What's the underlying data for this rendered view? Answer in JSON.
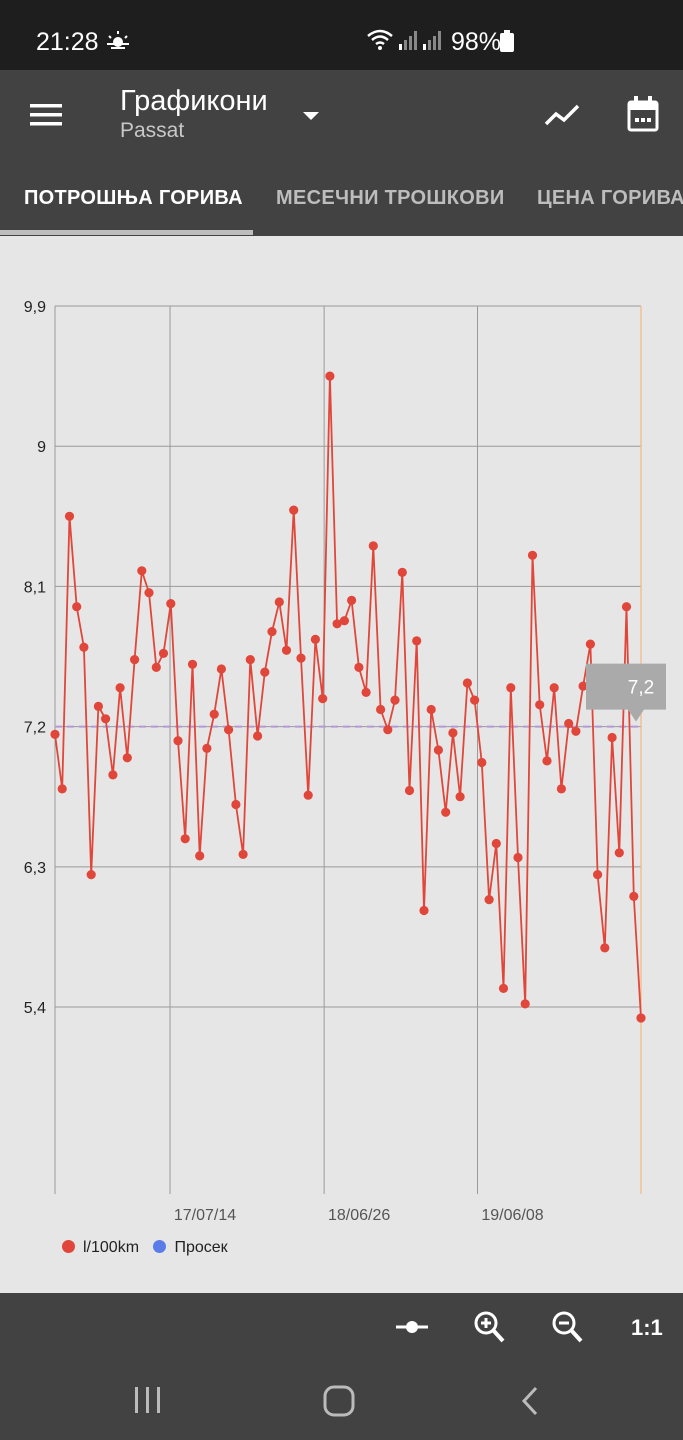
{
  "status": {
    "time": "21:28",
    "battery": "98%"
  },
  "app": {
    "title": "Графикони",
    "subtitle": "Passat"
  },
  "tabs": [
    "ПОТРОШЊА ГОРИВА",
    "МЕСЕЧНИ ТРОШКОВИ",
    "ЦЕНА ГОРИВА"
  ],
  "toolbar": {
    "ratio_label": "1:1"
  },
  "chart_data": {
    "type": "line",
    "ylim": [
      4.2,
      9.9
    ],
    "yticks": [
      "9,9",
      "9",
      "8,1",
      "7,2",
      "6,3",
      "5,4"
    ],
    "ytick_values": [
      9.9,
      9.0,
      8.1,
      7.2,
      6.3,
      5.4
    ],
    "xticks": [
      "17/07/14",
      "18/06/26",
      "19/06/08"
    ],
    "xtick_index": [
      15.9,
      37.2,
      58.4
    ],
    "grid": true,
    "legend_position": "bottom-left",
    "average": 7.2,
    "tooltip": "7,2",
    "colors": {
      "series": "#e0473a",
      "average": "#5b7be8"
    },
    "series": [
      {
        "name": "l/100km",
        "values": [
          7.15,
          6.8,
          8.55,
          7.97,
          7.71,
          6.25,
          7.33,
          7.25,
          6.89,
          7.45,
          7.0,
          7.63,
          8.2,
          8.06,
          7.58,
          7.67,
          7.99,
          7.11,
          6.48,
          7.6,
          6.37,
          7.06,
          7.28,
          7.57,
          7.18,
          6.7,
          6.38,
          7.63,
          7.14,
          7.55,
          7.81,
          8.0,
          7.69,
          8.59,
          7.64,
          6.76,
          7.76,
          7.38,
          9.45,
          7.86,
          7.88,
          8.01,
          7.58,
          7.42,
          8.36,
          7.31,
          7.18,
          7.37,
          8.19,
          6.79,
          7.75,
          6.02,
          7.31,
          7.05,
          6.65,
          7.16,
          6.75,
          7.48,
          7.37,
          6.97,
          6.09,
          6.45,
          5.52,
          7.45,
          6.36,
          5.42,
          8.3,
          7.34,
          6.98,
          7.45,
          6.8,
          7.22,
          7.17,
          7.46,
          7.73,
          6.25,
          5.78,
          7.13,
          6.39,
          7.97,
          6.11,
          5.33
        ]
      },
      {
        "name": "Просек",
        "values": [
          7.2
        ]
      }
    ]
  }
}
